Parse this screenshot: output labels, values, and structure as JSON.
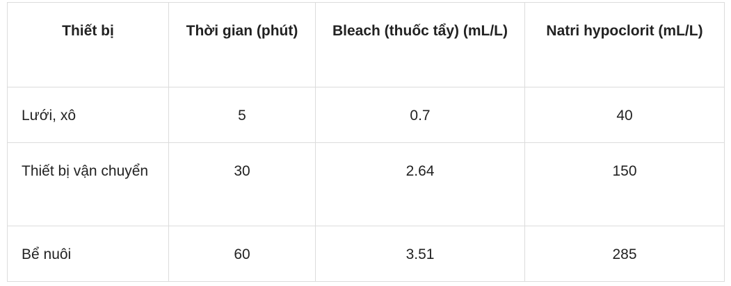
{
  "table": {
    "header": [
      "Thiết bị",
      "Thời gian (phút)",
      "Bleach (thuốc tẩy) (mL/L)",
      "Natri hypoclorit (mL/L)"
    ],
    "rows": [
      [
        "Lưới, xô",
        "5",
        "0.7",
        "40"
      ],
      [
        "Thiết bị vận chuyển",
        "30",
        "2.64",
        "150"
      ],
      [
        "Bể nuôi",
        "60",
        "3.51",
        "285"
      ]
    ]
  }
}
